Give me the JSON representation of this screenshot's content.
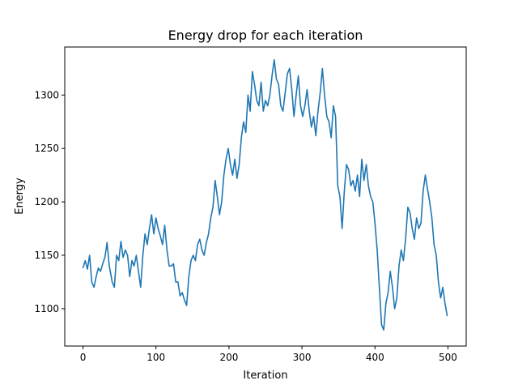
{
  "chart_data": {
    "type": "line",
    "title": "Energy drop for each iteration",
    "xlabel": "Iteration",
    "ylabel": "Energy",
    "xlim": [
      -25,
      525
    ],
    "ylim": [
      1065,
      1345
    ],
    "xticks": [
      0,
      100,
      200,
      300,
      400,
      500
    ],
    "yticks": [
      1100,
      1150,
      1200,
      1250,
      1300
    ],
    "grid": false,
    "legend": "none",
    "series": [
      {
        "color": "#1f77b4",
        "x": [
          0,
          3,
          6,
          9,
          12,
          15,
          18,
          21,
          24,
          27,
          30,
          33,
          36,
          40,
          43,
          46,
          49,
          52,
          55,
          58,
          61,
          64,
          67,
          70,
          73,
          76,
          79,
          82,
          85,
          88,
          91,
          94,
          97,
          100,
          103,
          106,
          109,
          112,
          115,
          118,
          121,
          124,
          127,
          130,
          133,
          136,
          139,
          142,
          145,
          148,
          151,
          154,
          157,
          160,
          163,
          166,
          169,
          172,
          175,
          178,
          181,
          184,
          187,
          190,
          193,
          196,
          199,
          202,
          205,
          208,
          211,
          214,
          217,
          220,
          223,
          226,
          229,
          232,
          235,
          238,
          241,
          244,
          247,
          250,
          253,
          256,
          259,
          262,
          265,
          268,
          271,
          274,
          277,
          280,
          283,
          286,
          289,
          292,
          295,
          298,
          301,
          304,
          307,
          310,
          313,
          316,
          319,
          322,
          325,
          328,
          331,
          334,
          337,
          340,
          343,
          346,
          349,
          352,
          355,
          358,
          361,
          364,
          367,
          370,
          373,
          376,
          379,
          382,
          385,
          388,
          391,
          394,
          397,
          400,
          403,
          406,
          409,
          412,
          415,
          418,
          421,
          424,
          427,
          430,
          433,
          436,
          439,
          442,
          445,
          448,
          451,
          454,
          457,
          460,
          463,
          466,
          469,
          472,
          475,
          478,
          481,
          484,
          487,
          490,
          493,
          496,
          499
        ],
        "y": [
          1138,
          1145,
          1137,
          1150,
          1125,
          1120,
          1130,
          1138,
          1135,
          1142,
          1148,
          1162,
          1140,
          1125,
          1120,
          1150,
          1145,
          1163,
          1148,
          1155,
          1150,
          1130,
          1145,
          1140,
          1150,
          1135,
          1120,
          1150,
          1170,
          1160,
          1175,
          1188,
          1170,
          1185,
          1175,
          1168,
          1160,
          1178,
          1155,
          1140,
          1140,
          1142,
          1125,
          1125,
          1112,
          1115,
          1108,
          1103,
          1130,
          1145,
          1150,
          1145,
          1160,
          1165,
          1155,
          1150,
          1162,
          1170,
          1185,
          1195,
          1220,
          1205,
          1188,
          1200,
          1225,
          1240,
          1250,
          1235,
          1225,
          1240,
          1222,
          1235,
          1260,
          1275,
          1265,
          1300,
          1285,
          1322,
          1310,
          1295,
          1290,
          1312,
          1285,
          1295,
          1290,
          1300,
          1318,
          1333,
          1315,
          1310,
          1290,
          1285,
          1302,
          1320,
          1325,
          1305,
          1280,
          1300,
          1318,
          1290,
          1280,
          1290,
          1305,
          1285,
          1270,
          1280,
          1262,
          1285,
          1302,
          1325,
          1300,
          1280,
          1275,
          1260,
          1290,
          1280,
          1215,
          1205,
          1175,
          1210,
          1235,
          1230,
          1215,
          1220,
          1210,
          1225,
          1205,
          1240,
          1220,
          1235,
          1215,
          1205,
          1200,
          1180,
          1155,
          1120,
          1085,
          1080,
          1105,
          1115,
          1135,
          1120,
          1100,
          1110,
          1140,
          1155,
          1145,
          1165,
          1195,
          1190,
          1175,
          1165,
          1185,
          1175,
          1180,
          1210,
          1225,
          1212,
          1200,
          1185,
          1160,
          1150,
          1125,
          1110,
          1120,
          1105,
          1093
        ]
      }
    ]
  }
}
